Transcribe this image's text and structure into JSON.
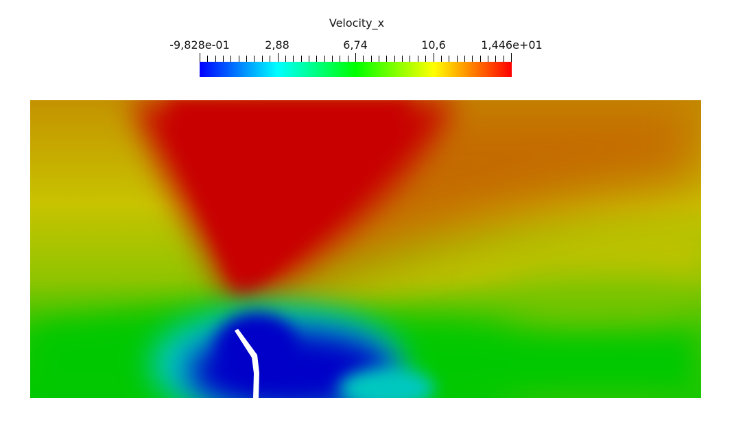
{
  "color_legend": {
    "title": "Velocity_x",
    "labels": [
      "-9,828e-01",
      "2,88",
      "6,74",
      "10,6",
      "1,446e+01"
    ],
    "range": [
      -0.9828,
      14.46
    ],
    "colormap": [
      "#0000ff",
      "#00ffff",
      "#00ff00",
      "#ffff00",
      "#ff0000"
    ]
  },
  "field_colors": {
    "max_red": "#c80000",
    "orange": "#c45e00",
    "yellow": "#c8c300",
    "yellow_green": "#9ec400",
    "green": "#00c800",
    "cyan": "#00c8c0",
    "blue": "#0000c8",
    "obstacle": "#ffffff"
  }
}
